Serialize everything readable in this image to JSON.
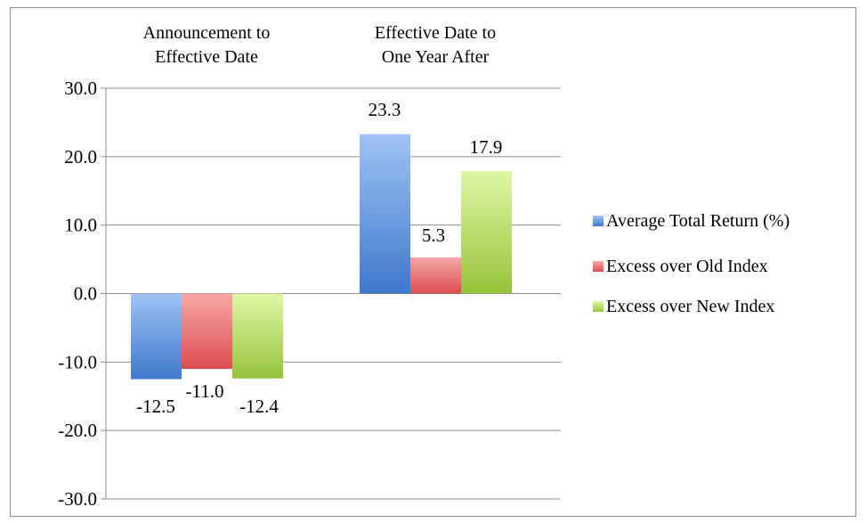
{
  "chart_data": {
    "type": "bar",
    "categories": [
      "Announcement to\nEffective Date",
      "Effective Date to\nOne Year After"
    ],
    "series": [
      {
        "name": "Average Total Return (%)",
        "values": [
          -12.5,
          23.3
        ],
        "labels": [
          "-12.5",
          "23.3"
        ],
        "color": "#5b8fd9"
      },
      {
        "name": "Excess over Old Index",
        "values": [
          -11.0,
          5.3
        ],
        "labels": [
          "-11.0",
          "5.3"
        ],
        "color": "#e86a6a"
      },
      {
        "name": "Excess over New Index",
        "values": [
          -12.4,
          17.9
        ],
        "labels": [
          "-12.4",
          "17.9"
        ],
        "color": "#a8d24e"
      }
    ],
    "ylim": [
      -30,
      30
    ],
    "yticks": [
      30,
      20,
      10,
      0,
      -10,
      -20,
      -30
    ],
    "ytick_labels": [
      "30.0",
      "20.0",
      "10.0",
      "0.0",
      "-10.0",
      "-20.0",
      "-30.0"
    ],
    "grid": true,
    "category_labels_position": "top",
    "legend_position": "right",
    "title": "",
    "xlabel": "",
    "ylabel": ""
  }
}
